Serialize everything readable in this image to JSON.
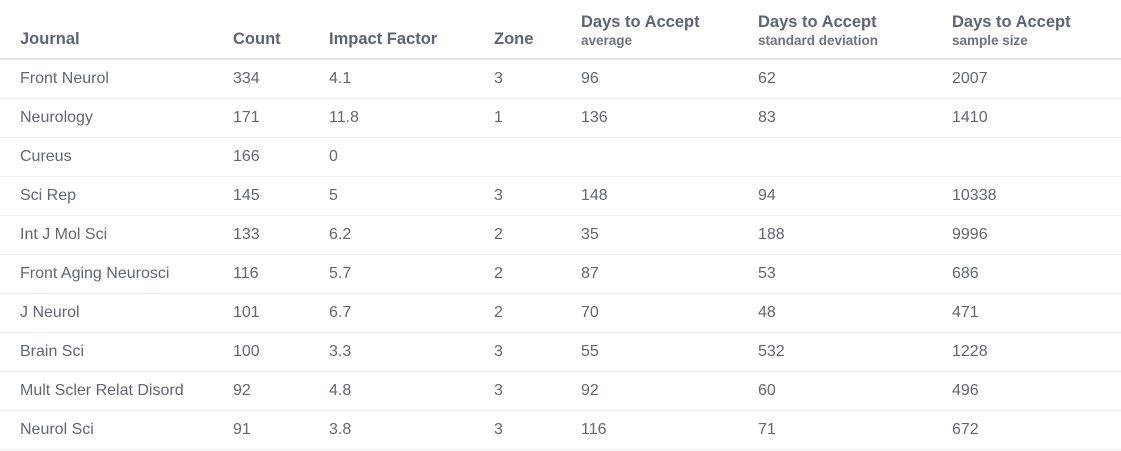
{
  "table": {
    "headers": {
      "journal": "Journal",
      "count": "Count",
      "impact_factor": "Impact Factor",
      "zone": "Zone",
      "days_avg_title": "Days to Accept",
      "days_avg_sub": "average",
      "days_sd_title": "Days to Accept",
      "days_sd_sub": "standard deviation",
      "days_n_title": "Days to Accept",
      "days_n_sub": "sample size"
    },
    "rows": [
      {
        "journal": "Front Neurol",
        "count": "334",
        "impact_factor": "4.1",
        "zone": "3",
        "avg": "96",
        "sd": "62",
        "n": "2007"
      },
      {
        "journal": "Neurology",
        "count": "171",
        "impact_factor": "11.8",
        "zone": "1",
        "avg": "136",
        "sd": "83",
        "n": "1410"
      },
      {
        "journal": "Cureus",
        "count": "166",
        "impact_factor": "0",
        "zone": "",
        "avg": "",
        "sd": "",
        "n": ""
      },
      {
        "journal": "Sci Rep",
        "count": "145",
        "impact_factor": "5",
        "zone": "3",
        "avg": "148",
        "sd": "94",
        "n": "10338"
      },
      {
        "journal": "Int J Mol Sci",
        "count": "133",
        "impact_factor": "6.2",
        "zone": "2",
        "avg": "35",
        "sd": "188",
        "n": "9996"
      },
      {
        "journal": "Front Aging Neurosci",
        "count": "116",
        "impact_factor": "5.7",
        "zone": "2",
        "avg": "87",
        "sd": "53",
        "n": "686"
      },
      {
        "journal": "J Neurol",
        "count": "101",
        "impact_factor": "6.7",
        "zone": "2",
        "avg": "70",
        "sd": "48",
        "n": "471"
      },
      {
        "journal": "Brain Sci",
        "count": "100",
        "impact_factor": "3.3",
        "zone": "3",
        "avg": "55",
        "sd": "532",
        "n": "1228"
      },
      {
        "journal": "Mult Scler Relat Disord",
        "count": "92",
        "impact_factor": "4.8",
        "zone": "3",
        "avg": "92",
        "sd": "60",
        "n": "496"
      },
      {
        "journal": "Neurol Sci",
        "count": "91",
        "impact_factor": "3.8",
        "zone": "3",
        "avg": "116",
        "sd": "71",
        "n": "672"
      }
    ]
  }
}
